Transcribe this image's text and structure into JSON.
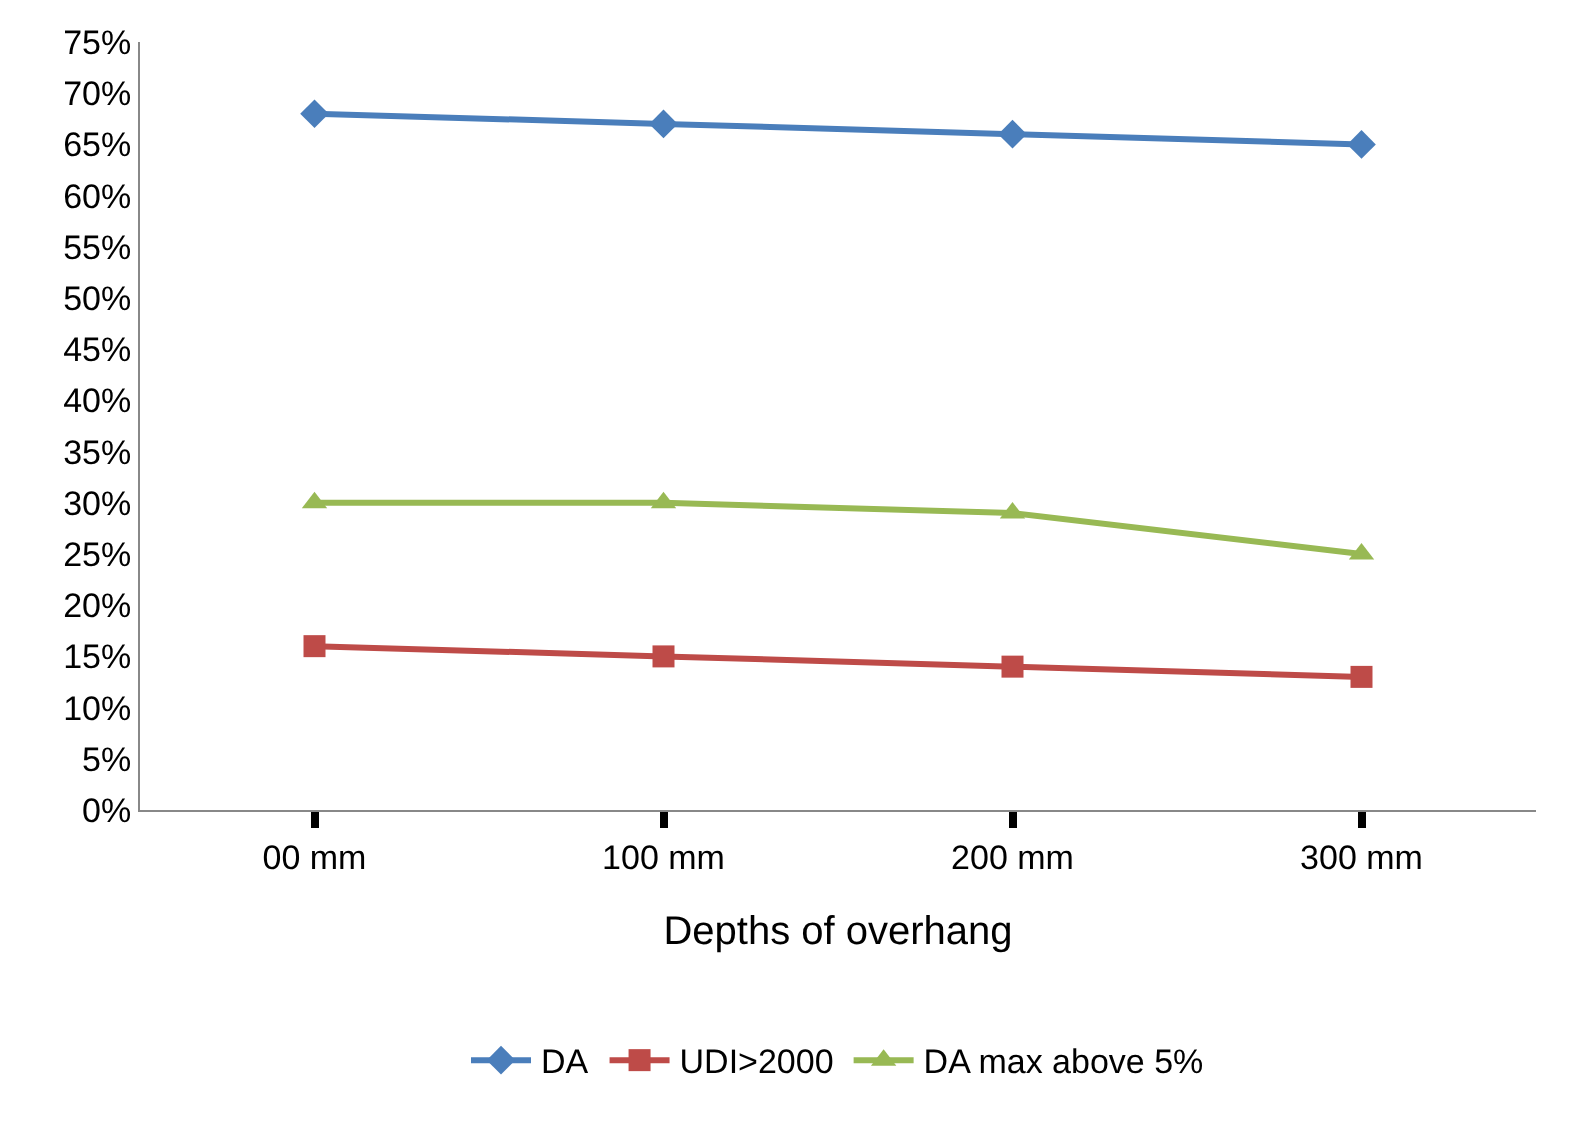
{
  "chart_data": {
    "type": "line",
    "xlabel": "Depths of overhang",
    "categories": [
      "00 mm",
      "100 mm",
      "200 mm",
      "300 mm"
    ],
    "series": [
      {
        "name": "DA",
        "color": "#4a7ebb",
        "marker": "diamond",
        "values": [
          68,
          67,
          66,
          65
        ]
      },
      {
        "name": "UDI>2000",
        "color": "#be4b48",
        "marker": "square",
        "values": [
          16,
          15,
          14,
          13
        ]
      },
      {
        "name": "DA max above 5%",
        "color": "#98b954",
        "marker": "triangle",
        "values": [
          30,
          30,
          29,
          25
        ]
      }
    ],
    "ylim": [
      0,
      75
    ],
    "yticks": [
      {
        "value": 0,
        "label": "0%"
      },
      {
        "value": 5,
        "label": "5%"
      },
      {
        "value": 10,
        "label": "10%"
      },
      {
        "value": 15,
        "label": "15%"
      },
      {
        "value": 20,
        "label": "20%"
      },
      {
        "value": 25,
        "label": "25%"
      },
      {
        "value": 30,
        "label": "30%"
      },
      {
        "value": 35,
        "label": "35%"
      },
      {
        "value": 40,
        "label": "40%"
      },
      {
        "value": 45,
        "label": "45%"
      },
      {
        "value": 50,
        "label": "50%"
      },
      {
        "value": 55,
        "label": "55%"
      },
      {
        "value": 60,
        "label": "60%"
      },
      {
        "value": 65,
        "label": "65%"
      },
      {
        "value": 70,
        "label": "70%"
      },
      {
        "value": 75,
        "label": "75%"
      }
    ],
    "legend": "bottom",
    "line_style": "solid"
  }
}
